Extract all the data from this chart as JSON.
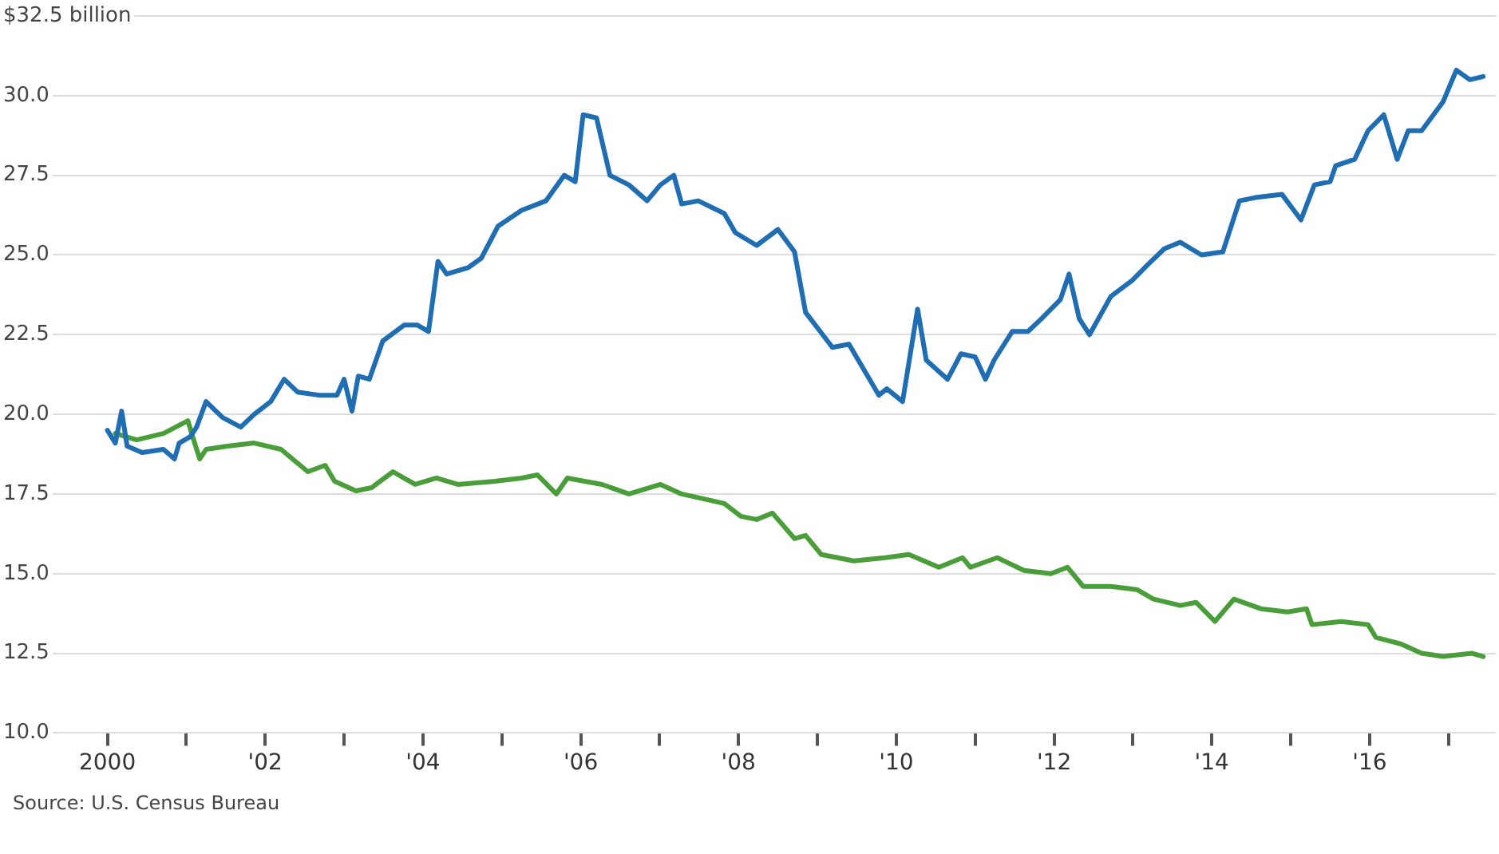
{
  "chart_data": {
    "type": "line",
    "marker": "none",
    "line_style": "solid",
    "grid": "y",
    "legend": false,
    "xlim": [
      1998.8,
      2017.6
    ],
    "xticks": [
      {
        "value": 2000,
        "label": "2000"
      },
      {
        "value": 2001,
        "label": null
      },
      {
        "value": 2002,
        "label": "'02"
      },
      {
        "value": 2003,
        "label": null
      },
      {
        "value": 2004,
        "label": "'04"
      },
      {
        "value": 2005,
        "label": null
      },
      {
        "value": 2006,
        "label": "'06"
      },
      {
        "value": 2007,
        "label": null
      },
      {
        "value": 2008,
        "label": "'08"
      },
      {
        "value": 2009,
        "label": null
      },
      {
        "value": 2010,
        "label": "'10"
      },
      {
        "value": 2011,
        "label": null
      },
      {
        "value": 2012,
        "label": "'12"
      },
      {
        "value": 2013,
        "label": null
      },
      {
        "value": 2014,
        "label": "'14"
      },
      {
        "value": 2015,
        "label": null
      },
      {
        "value": 2016,
        "label": "'16"
      },
      {
        "value": 2017,
        "label": null
      }
    ],
    "ylim": [
      10,
      32.5
    ],
    "yticks": [
      {
        "value": 10,
        "label": "10.0"
      },
      {
        "value": 12.5,
        "label": "12.5"
      },
      {
        "value": 15,
        "label": "15.0"
      },
      {
        "value": 17.5,
        "label": "17.5"
      },
      {
        "value": 20,
        "label": "20.0"
      },
      {
        "value": 22.5,
        "label": "22.5"
      },
      {
        "value": 25,
        "label": "25.0"
      },
      {
        "value": 27.5,
        "label": "27.5"
      },
      {
        "value": 30,
        "label": "30.0"
      },
      {
        "value": 32.5,
        "label": "$32.5 billion"
      }
    ],
    "annotations": [
      "Source: U.S. Census Bureau"
    ],
    "series": [
      {
        "color": "#1f6db3",
        "x": [
          2000.0,
          2000.1,
          2000.18,
          2000.25,
          2000.44,
          2000.71,
          2000.85,
          2000.91,
          2001.05,
          2001.13,
          2001.25,
          2001.46,
          2001.69,
          2001.86,
          2002.07,
          2002.24,
          2002.41,
          2002.68,
          2002.91,
          2003.0,
          2003.1,
          2003.18,
          2003.32,
          2003.49,
          2003.76,
          2003.93,
          2004.07,
          2004.19,
          2004.3,
          2004.57,
          2004.74,
          2004.95,
          2005.25,
          2005.56,
          2005.79,
          2005.93,
          2006.03,
          2006.2,
          2006.37,
          2006.61,
          2006.84,
          2007.01,
          2007.18,
          2007.28,
          2007.49,
          2007.82,
          2007.96,
          2008.23,
          2008.5,
          2008.71,
          2008.85,
          2009.19,
          2009.4,
          2009.78,
          2009.88,
          2010.08,
          2010.27,
          2010.38,
          2010.65,
          2010.82,
          2011.0,
          2011.13,
          2011.24,
          2011.47,
          2011.67,
          2011.84,
          2012.08,
          2012.19,
          2012.32,
          2012.45,
          2012.72,
          2012.99,
          2013.19,
          2013.4,
          2013.6,
          2013.87,
          2014.14,
          2014.35,
          2014.55,
          2014.89,
          2015.13,
          2015.3,
          2015.5,
          2015.57,
          2015.81,
          2015.98,
          2016.18,
          2016.35,
          2016.49,
          2016.66,
          2016.93,
          2017.1,
          2017.27,
          2017.44
        ],
        "values": [
          19.5,
          19.1,
          20.1,
          19.0,
          18.8,
          18.9,
          18.6,
          19.1,
          19.3,
          19.6,
          20.4,
          19.9,
          19.6,
          20.0,
          20.4,
          21.1,
          20.7,
          20.6,
          20.6,
          21.1,
          20.1,
          21.2,
          21.1,
          22.3,
          22.8,
          22.8,
          22.6,
          24.8,
          24.4,
          24.6,
          24.9,
          25.9,
          26.4,
          26.7,
          27.5,
          27.3,
          29.4,
          29.3,
          27.5,
          27.2,
          26.7,
          27.2,
          27.5,
          26.6,
          26.7,
          26.3,
          25.7,
          25.3,
          25.8,
          25.1,
          23.2,
          22.1,
          22.2,
          20.6,
          20.8,
          20.4,
          23.3,
          21.7,
          21.1,
          21.9,
          21.8,
          21.1,
          21.7,
          22.6,
          22.6,
          23.0,
          23.6,
          24.4,
          23.0,
          22.5,
          23.7,
          24.2,
          24.7,
          25.2,
          25.4,
          25.0,
          25.1,
          26.7,
          26.8,
          26.9,
          26.1,
          27.2,
          27.3,
          27.8,
          28.0,
          28.9,
          29.4,
          28.0,
          28.9,
          28.9,
          29.8,
          30.8,
          30.5,
          30.6
        ]
      },
      {
        "color": "#4a9e3a",
        "x": [
          2000.1,
          2000.37,
          2000.71,
          2001.02,
          2001.08,
          2001.17,
          2001.25,
          2001.52,
          2001.86,
          2002.2,
          2002.54,
          2002.76,
          2002.88,
          2003.15,
          2003.35,
          2003.62,
          2003.9,
          2004.17,
          2004.44,
          2004.91,
          2005.25,
          2005.45,
          2005.69,
          2005.83,
          2006.27,
          2006.61,
          2007.01,
          2007.28,
          2007.82,
          2008.03,
          2008.23,
          2008.43,
          2008.71,
          2008.85,
          2009.05,
          2009.46,
          2009.86,
          2010.16,
          2010.54,
          2010.84,
          2010.94,
          2011.28,
          2011.62,
          2011.96,
          2012.17,
          2012.37,
          2012.72,
          2013.05,
          2013.26,
          2013.6,
          2013.8,
          2014.04,
          2014.28,
          2014.62,
          2014.96,
          2015.2,
          2015.27,
          2015.64,
          2015.98,
          2016.08,
          2016.39,
          2016.66,
          2016.93,
          2017.3,
          2017.44
        ],
        "values": [
          19.4,
          19.2,
          19.4,
          19.8,
          19.3,
          18.6,
          18.9,
          19.0,
          19.1,
          18.9,
          18.2,
          18.4,
          17.9,
          17.6,
          17.7,
          18.2,
          17.8,
          18.0,
          17.8,
          17.9,
          18.0,
          18.1,
          17.5,
          18.0,
          17.8,
          17.5,
          17.8,
          17.5,
          17.2,
          16.8,
          16.7,
          16.9,
          16.1,
          16.2,
          15.6,
          15.4,
          15.5,
          15.6,
          15.2,
          15.5,
          15.2,
          15.5,
          15.1,
          15.0,
          15.2,
          14.6,
          14.6,
          14.5,
          14.2,
          14.0,
          14.1,
          13.5,
          14.2,
          13.9,
          13.8,
          13.9,
          13.4,
          13.5,
          13.4,
          13.0,
          12.8,
          12.5,
          12.4,
          12.5,
          12.4
        ]
      }
    ]
  }
}
